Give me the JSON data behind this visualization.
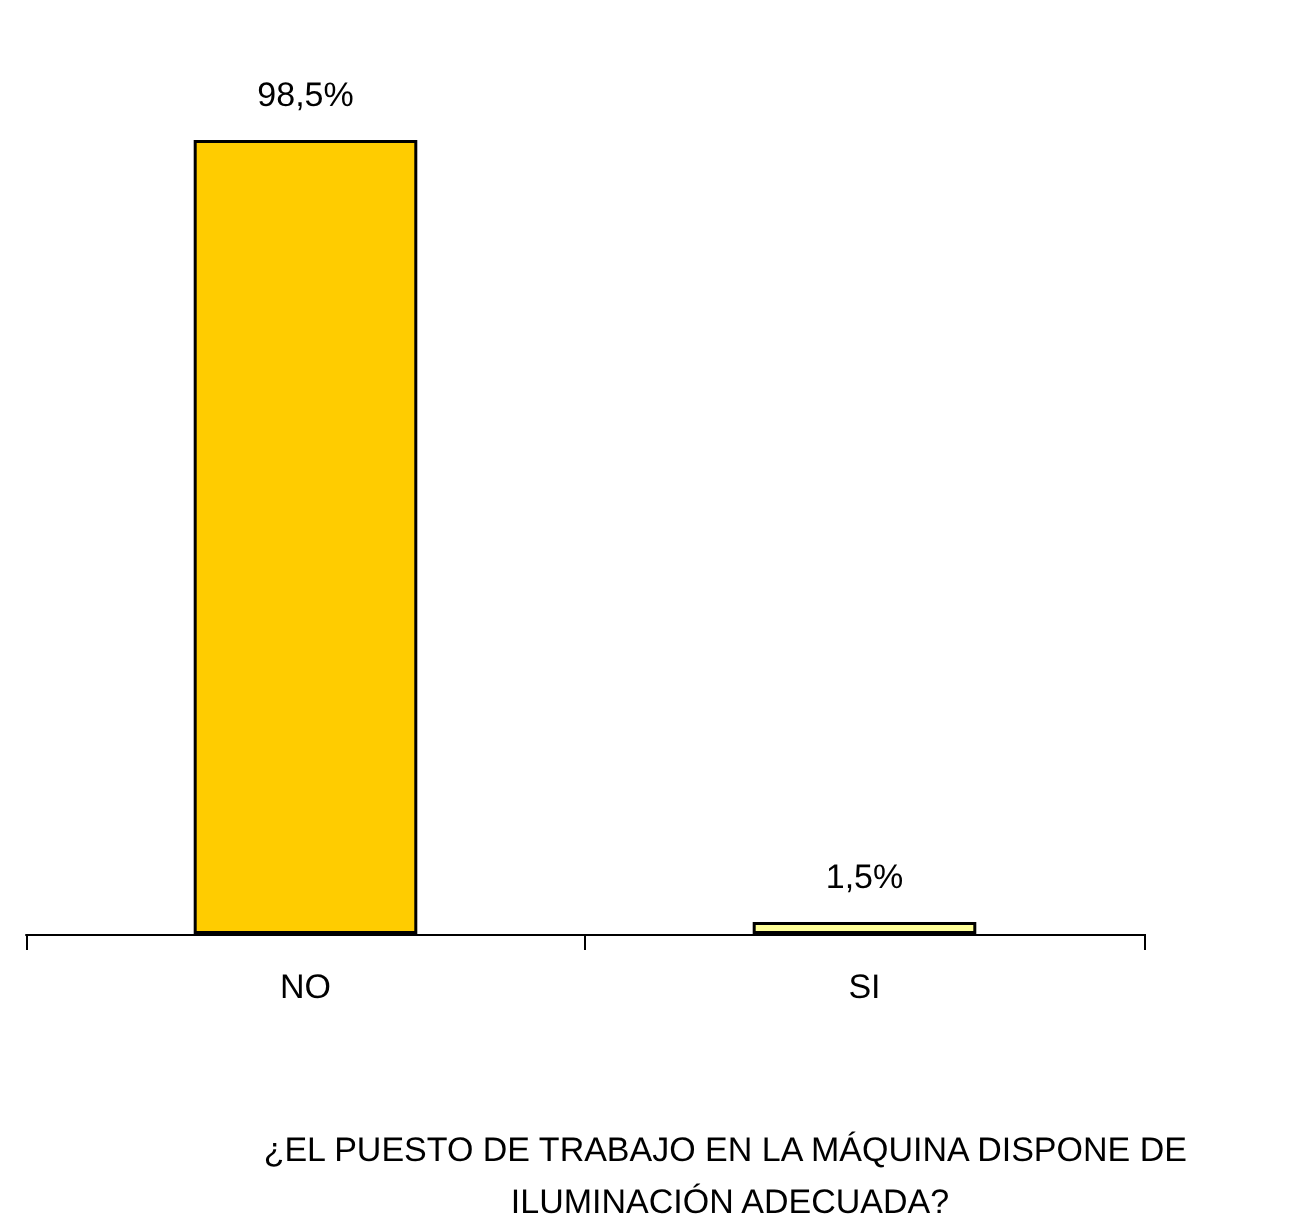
{
  "chart_data": {
    "type": "bar",
    "categories": [
      "NO",
      "SI"
    ],
    "values": [
      98.5,
      1.5
    ],
    "colors": [
      "#ffcc00",
      "#ffff99"
    ],
    "value_labels": [
      "98,5%",
      "1,5%"
    ],
    "xlabel": "¿EL PUESTO DE TRABAJO EN LA MÁQUINA DISPONE DE ILUMINACIÓN ADECUADA?"
  }
}
